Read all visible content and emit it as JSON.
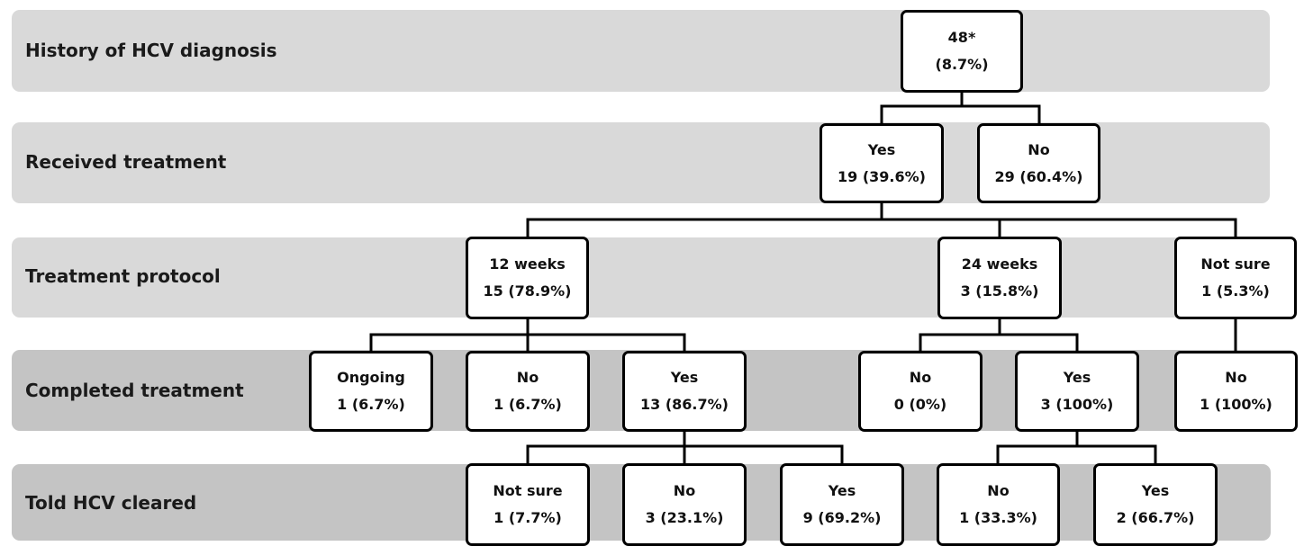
{
  "colors": {
    "band_light": "#d9d9d9",
    "band_dark": "#c4c4c4",
    "line": "#000000"
  },
  "rows": [
    {
      "id": "history",
      "label": "History of HCV diagnosis"
    },
    {
      "id": "treatment",
      "label": "Received treatment"
    },
    {
      "id": "protocol",
      "label": "Treatment protocol"
    },
    {
      "id": "completed",
      "label": "Completed treatment"
    },
    {
      "id": "cleared",
      "label": "Told HCV cleared"
    }
  ],
  "nodes": {
    "root": {
      "line1": "48*",
      "line2": "(8.7%)"
    },
    "tx_yes": {
      "line1": "Yes",
      "line2": "19 (39.6%)"
    },
    "tx_no": {
      "line1": "No",
      "line2": "29 (60.4%)"
    },
    "p12": {
      "line1": "12 weeks",
      "line2": "15 (78.9%)"
    },
    "p24": {
      "line1": "24 weeks",
      "line2": "3 (15.8%)"
    },
    "pns": {
      "line1": "Not sure",
      "line2": "1 (5.3%)"
    },
    "c12_ongoing": {
      "line1": "Ongoing",
      "line2": "1 (6.7%)"
    },
    "c12_no": {
      "line1": "No",
      "line2": "1 (6.7%)"
    },
    "c12_yes": {
      "line1": "Yes",
      "line2": "13 (86.7%)"
    },
    "c24_no": {
      "line1": "No",
      "line2": "0  (0%)"
    },
    "c24_yes": {
      "line1": "Yes",
      "line2": "3 (100%)"
    },
    "cns_no": {
      "line1": "No",
      "line2": "1 (100%)"
    },
    "h12_notsure": {
      "line1": "Not sure",
      "line2": "1 (7.7%)"
    },
    "h12_no": {
      "line1": "No",
      "line2": "3 (23.1%)"
    },
    "h12_yes": {
      "line1": "Yes",
      "line2": "9 (69.2%)"
    },
    "h24_no": {
      "line1": "No",
      "line2": "1 (33.3%)"
    },
    "h24_yes": {
      "line1": "Yes",
      "line2": "2 (66.7%)"
    }
  }
}
